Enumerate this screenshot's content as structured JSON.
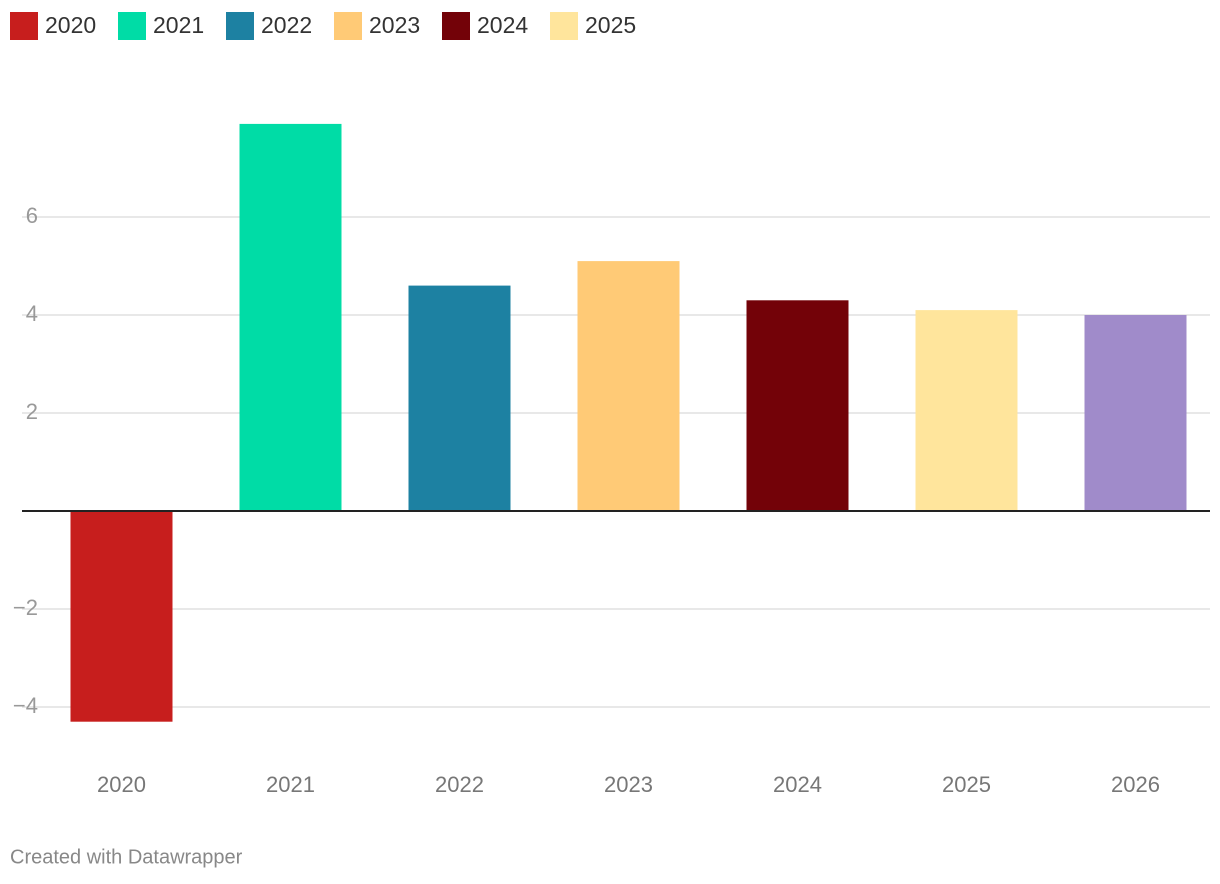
{
  "chart_data": {
    "type": "bar",
    "categories": [
      "2020",
      "2021",
      "2022",
      "2023",
      "2024",
      "2025",
      "2026"
    ],
    "values": [
      -4.3,
      7.9,
      4.6,
      5.1,
      4.3,
      4.1,
      4.0
    ],
    "colors": [
      "#c71e1d",
      "#00dca6",
      "#1d81a2",
      "#ffca76",
      "#730208",
      "#ffe59c",
      "#a08bca"
    ],
    "legend": [
      "2020",
      "2021",
      "2022",
      "2023",
      "2024",
      "2025"
    ],
    "legend_position": "top-left",
    "ylim": [
      -5,
      8.5
    ],
    "yticks": [
      {
        "value": -4,
        "label": "−4"
      },
      {
        "value": -2,
        "label": "−2"
      },
      2,
      4,
      6
    ],
    "grid": true,
    "footer": "Created with Datawrapper"
  }
}
